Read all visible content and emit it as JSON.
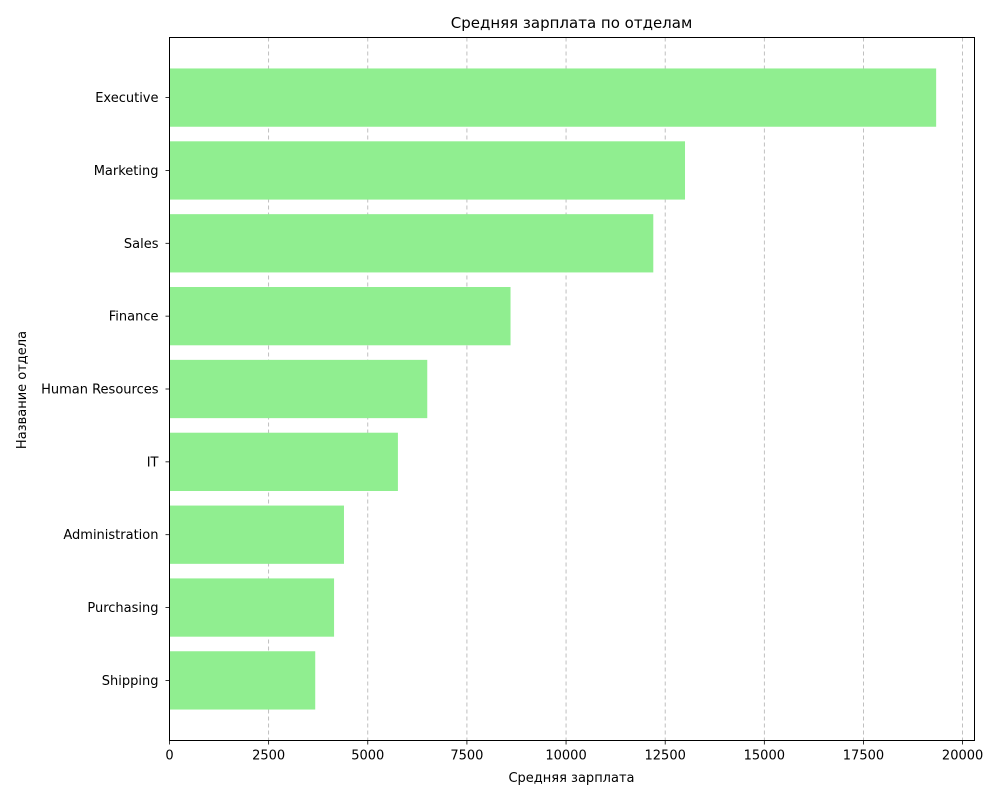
{
  "chart_data": {
    "type": "bar",
    "orientation": "horizontal",
    "title": "Средняя зарплата по отделам",
    "xlabel": "Средняя зарплата",
    "ylabel": "Название отдела",
    "categories": [
      "Executive",
      "Marketing",
      "Sales",
      "Finance",
      "Human Resources",
      "IT",
      "Administration",
      "Purchasing",
      "Shipping"
    ],
    "values": [
      19333,
      13000,
      12200,
      8600,
      6500,
      5760,
      4400,
      4150,
      3675
    ],
    "xlim": [
      0,
      20300
    ],
    "xticks": [
      0,
      2500,
      5000,
      7500,
      10000,
      12500,
      15000,
      17500,
      20000
    ],
    "xtick_labels": [
      "0",
      "2500",
      "5000",
      "7500",
      "10000",
      "12500",
      "15000",
      "17500",
      "20000"
    ],
    "grid": "x-axis dashed",
    "bar_color": "#90ee90",
    "legend": "none"
  }
}
